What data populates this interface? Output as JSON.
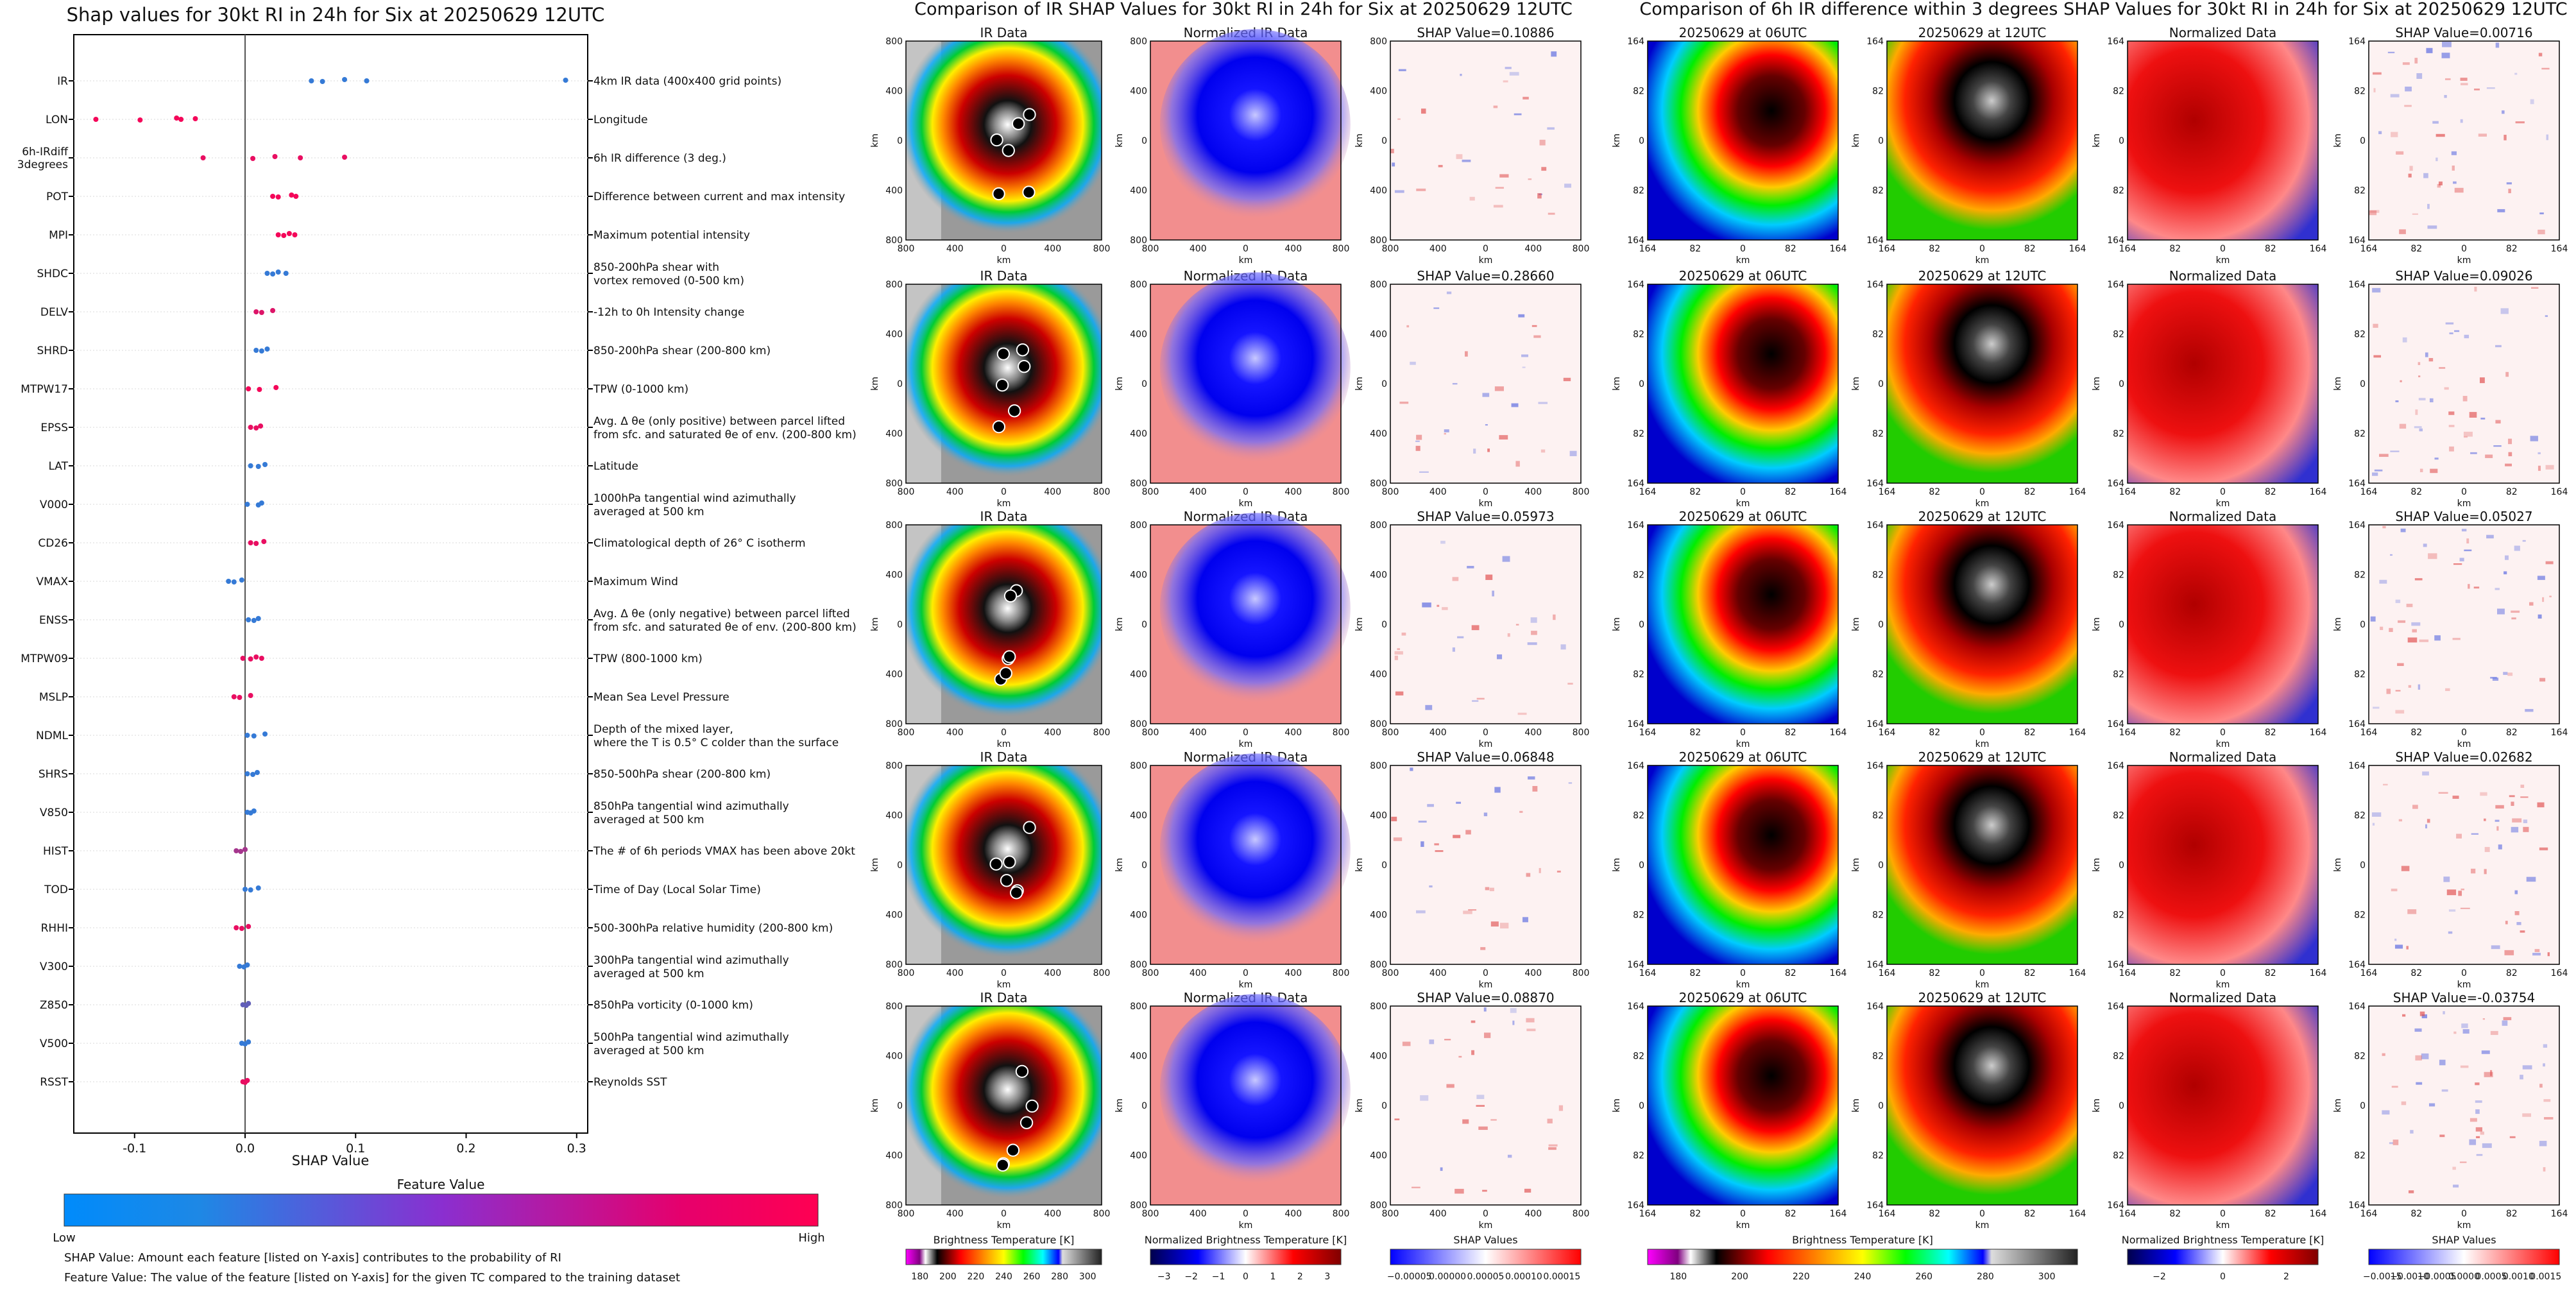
{
  "summary": {
    "title": "Shap values for 30kt RI in 24h for Six at 20250629 12UTC",
    "xlabel": "SHAP Value",
    "xticks": [
      "-0.1",
      "0.0",
      "0.1",
      "0.2",
      "0.3"
    ],
    "colorbar_title": "Feature Value",
    "colorbar_low": "Low",
    "colorbar_high": "High",
    "low_color": "#1e88e5",
    "high_color": "#ff0052",
    "footnote1": "SHAP Value: Amount each feature [listed on Y-axis] contributes to the probability of RI",
    "footnote2": "Feature Value: The value of the feature [listed on Y-axis] for the given TC compared to the training dataset"
  },
  "chart_data": [
    {
      "type": "scatter",
      "title": "Shap values for 30kt RI in 24h for Six at 20250629 12UTC",
      "xlabel": "SHAP Value",
      "xlim": [
        -0.155,
        0.31
      ],
      "features": [
        {
          "code": "IR",
          "desc": "4km IR data (400x400 grid points)",
          "points": [
            [
              0.06,
              0.1
            ],
            [
              0.07,
              0.1
            ],
            [
              0.09,
              0.1
            ],
            [
              0.11,
              0.1
            ],
            [
              0.29,
              0.1
            ]
          ]
        },
        {
          "code": "LON",
          "desc": "Longitude",
          "points": [
            [
              -0.135,
              0.95
            ],
            [
              -0.095,
              0.95
            ],
            [
              -0.062,
              0.95
            ],
            [
              -0.058,
              0.95
            ],
            [
              -0.045,
              0.95
            ]
          ]
        },
        {
          "code": "6h-IRdiff\n3degrees",
          "desc": "6h IR difference (3 deg.)",
          "points": [
            [
              -0.038,
              0.9
            ],
            [
              0.007,
              0.9
            ],
            [
              0.027,
              0.9
            ],
            [
              0.05,
              0.9
            ],
            [
              0.09,
              0.9
            ]
          ]
        },
        {
          "code": "POT",
          "desc": "Difference between current and max intensity",
          "points": [
            [
              0.025,
              0.95
            ],
            [
              0.03,
              0.95
            ],
            [
              0.042,
              0.95
            ],
            [
              0.046,
              0.95
            ]
          ]
        },
        {
          "code": "MPI",
          "desc": "Maximum potential intensity",
          "points": [
            [
              0.03,
              0.95
            ],
            [
              0.035,
              0.95
            ],
            [
              0.04,
              0.95
            ],
            [
              0.045,
              0.95
            ]
          ]
        },
        {
          "code": "SHDC",
          "desc": "850-200hPa shear with\nvortex removed (0-500 km)",
          "points": [
            [
              0.02,
              0.1
            ],
            [
              0.025,
              0.1
            ],
            [
              0.03,
              0.1
            ],
            [
              0.037,
              0.1
            ]
          ]
        },
        {
          "code": "DELV",
          "desc": "-12h to 0h Intensity change",
          "points": [
            [
              0.01,
              0.85
            ],
            [
              0.015,
              0.85
            ],
            [
              0.025,
              0.85
            ]
          ]
        },
        {
          "code": "SHRD",
          "desc": "850-200hPa shear (200-800 km)",
          "points": [
            [
              0.01,
              0.1
            ],
            [
              0.015,
              0.1
            ],
            [
              0.02,
              0.1
            ]
          ]
        },
        {
          "code": "MTPW17",
          "desc": "TPW (0-1000 km)",
          "points": [
            [
              0.003,
              0.95
            ],
            [
              0.013,
              0.95
            ],
            [
              0.028,
              0.95
            ]
          ]
        },
        {
          "code": "EPSS",
          "desc": "Avg. Δ θe (only positive) between parcel lifted\nfrom sfc. and saturated θe of env. (200-800 km)",
          "points": [
            [
              0.005,
              0.9
            ],
            [
              0.01,
              0.9
            ],
            [
              0.014,
              0.9
            ]
          ]
        },
        {
          "code": "LAT",
          "desc": "Latitude",
          "points": [
            [
              0.005,
              0.1
            ],
            [
              0.012,
              0.1
            ],
            [
              0.018,
              0.1
            ]
          ]
        },
        {
          "code": "V000",
          "desc": "1000hPa tangential wind azimuthally\naveraged at 500 km",
          "points": [
            [
              0.002,
              0.1
            ],
            [
              0.012,
              0.1
            ],
            [
              0.015,
              0.1
            ]
          ]
        },
        {
          "code": "CD26",
          "desc": "Climatological depth of 26° C isotherm",
          "points": [
            [
              0.005,
              0.9
            ],
            [
              0.01,
              0.9
            ],
            [
              0.017,
              0.9
            ]
          ]
        },
        {
          "code": "VMAX",
          "desc": "Maximum Wind",
          "points": [
            [
              -0.015,
              0.1
            ],
            [
              -0.01,
              0.1
            ],
            [
              -0.003,
              0.1
            ]
          ]
        },
        {
          "code": "ENSS",
          "desc": "Avg. Δ θe (only negative) between parcel lifted\nfrom sfc. and saturated θe of env. (200-800 km)",
          "points": [
            [
              0.003,
              0.1
            ],
            [
              0.008,
              0.1
            ],
            [
              0.012,
              0.1
            ]
          ]
        },
        {
          "code": "MTPW09",
          "desc": "TPW (800-1000 km)",
          "points": [
            [
              -0.002,
              0.9
            ],
            [
              0.005,
              0.9
            ],
            [
              0.01,
              0.9
            ],
            [
              0.015,
              0.9
            ]
          ]
        },
        {
          "code": "MSLP",
          "desc": "Mean Sea Level Pressure",
          "points": [
            [
              -0.01,
              0.9
            ],
            [
              -0.005,
              0.9
            ],
            [
              0.005,
              0.9
            ]
          ]
        },
        {
          "code": "NDML",
          "desc": "Depth of the mixed layer,\nwhere the T is 0.5° C colder than the surface",
          "points": [
            [
              0.002,
              0.1
            ],
            [
              0.008,
              0.1
            ],
            [
              0.018,
              0.1
            ]
          ]
        },
        {
          "code": "SHRS",
          "desc": "850-500hPa shear (200-800 km)",
          "points": [
            [
              0.002,
              0.1
            ],
            [
              0.007,
              0.1
            ],
            [
              0.011,
              0.1
            ]
          ]
        },
        {
          "code": "V850",
          "desc": "850hPa tangential wind azimuthally\naveraged at 500 km",
          "points": [
            [
              0.002,
              0.1
            ],
            [
              0.005,
              0.1
            ],
            [
              0.008,
              0.1
            ]
          ]
        },
        {
          "code": "HIST",
          "desc": "The # of 6h periods VMAX has been above 20kt",
          "points": [
            [
              -0.008,
              0.6
            ],
            [
              -0.004,
              0.6
            ],
            [
              0.0,
              0.6
            ]
          ]
        },
        {
          "code": "TOD",
          "desc": "Time of Day (Local Solar Time)",
          "points": [
            [
              0.0,
              0.1
            ],
            [
              0.005,
              0.1
            ],
            [
              0.012,
              0.1
            ]
          ]
        },
        {
          "code": "RHHI",
          "desc": "500-300hPa relative humidity (200-800 km)",
          "points": [
            [
              -0.008,
              0.9
            ],
            [
              -0.003,
              0.9
            ],
            [
              0.003,
              0.9
            ]
          ]
        },
        {
          "code": "V300",
          "desc": "300hPa tangential wind azimuthally\naveraged at 500 km",
          "points": [
            [
              -0.005,
              0.1
            ],
            [
              -0.001,
              0.1
            ],
            [
              0.002,
              0.1
            ]
          ]
        },
        {
          "code": "Z850",
          "desc": "850hPa vorticity (0-1000 km)",
          "points": [
            [
              -0.002,
              0.3
            ],
            [
              0.001,
              0.3
            ],
            [
              0.003,
              0.3
            ]
          ]
        },
        {
          "code": "V500",
          "desc": "500hPa tangential wind azimuthally\naveraged at 500 km",
          "points": [
            [
              -0.003,
              0.1
            ],
            [
              0.0,
              0.1
            ],
            [
              0.003,
              0.1
            ]
          ]
        },
        {
          "code": "RSST",
          "desc": "Reynolds SST",
          "points": [
            [
              -0.002,
              0.9
            ],
            [
              0.0,
              0.9
            ],
            [
              0.002,
              0.9
            ]
          ]
        }
      ]
    },
    {
      "type": "heatmap",
      "suptitle": "Comparison of IR SHAP Values for 30kt RI in 24h for Six at 20250629 12UTC",
      "panel_titles": [
        "IR Data",
        "Normalized IR Data"
      ],
      "shap_values": [
        "SHAP Value=0.10886",
        "SHAP Value=0.28660",
        "SHAP Value=0.05973",
        "SHAP Value=0.06848",
        "SHAP Value=0.08870"
      ],
      "axis_label": "km",
      "xticks": [
        "800",
        "400",
        "0",
        "400",
        "800"
      ],
      "yticks": [
        "800",
        "400",
        "0",
        "400",
        "800"
      ],
      "colorbars": [
        {
          "title": "Brightness Temperature [K]",
          "ticks": [
            "180",
            "200",
            "220",
            "240",
            "260",
            "280",
            "300"
          ]
        },
        {
          "title": "Normalized Brightness Temperature [K]",
          "ticks": [
            "−3",
            "−2",
            "−1",
            "0",
            "1",
            "2",
            "3"
          ]
        },
        {
          "title": "SHAP Values",
          "ticks": [
            "−0.00005",
            "0.00000",
            "0.00005",
            "0.00010",
            "0.00015"
          ]
        }
      ]
    },
    {
      "type": "heatmap",
      "suptitle": "Comparison of 6h IR difference within 3 degrees SHAP Values for 30kt RI in 24h for Six at 20250629 12UTC",
      "panel_titles": [
        "20250629 at 06UTC",
        "20250629 at 12UTC",
        "Normalized Data"
      ],
      "shap_values": [
        "SHAP Value=0.00716",
        "SHAP Value=0.09026",
        "SHAP Value=0.05027",
        "SHAP Value=0.02682",
        "SHAP Value=-0.03754"
      ],
      "axis_label": "km",
      "xticks": [
        "164",
        "82",
        "0",
        "82",
        "164"
      ],
      "yticks": [
        "164",
        "82",
        "0",
        "82",
        "164"
      ],
      "colorbars": [
        {
          "title": "Brightness Temperature [K]",
          "ticks": [
            "180",
            "200",
            "220",
            "240",
            "260",
            "280",
            "300"
          ]
        },
        {
          "title": "Normalized Brightness Temperature [K]",
          "ticks": [
            "−2",
            "0",
            "2"
          ]
        },
        {
          "title": "SHAP Values",
          "ticks": [
            "−0.0015",
            "−0.0010",
            "−0.0005",
            "0.0000",
            "0.0005",
            "0.0010",
            "0.0015"
          ]
        }
      ]
    }
  ]
}
